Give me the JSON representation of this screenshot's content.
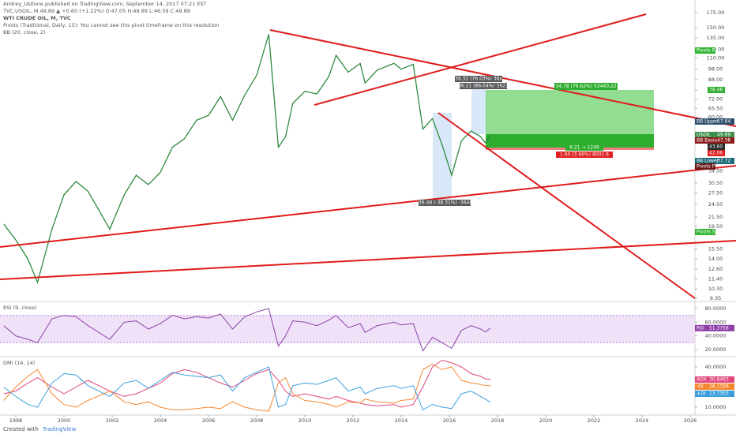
{
  "header": {
    "published": "Andrey_Ustlone published on TradingView.com, September 14, 2017 07:21 EST",
    "quote": "TVC:USOIL, M 49.89 ▲ +0.60 (+1.22%) O:47.05 H:49.89 L:46.59 C:49.89",
    "instrument": "WTI CRUDE OIL, M, TVC",
    "pivots": "Pivots (Traditional, Daily, 15): You cannot see this pivot timeframe on this resolution",
    "bb": "BB (20, close, 2)"
  },
  "price": {
    "name": "USOIL",
    "x": [
      1997.5,
      1998.0,
      1998.5,
      1998.9,
      1999.5,
      2000.0,
      2000.5,
      2001.0,
      2001.9,
      2002.5,
      2003.0,
      2003.5,
      2004.0,
      2004.5,
      2005.0,
      2005.5,
      2006.0,
      2006.5,
      2007.0,
      2007.5,
      2008.0,
      2008.5,
      2008.9,
      2009.2,
      2009.5,
      2010.0,
      2010.5,
      2011.0,
      2011.3,
      2011.8,
      2012.3,
      2012.5,
      2013.0,
      2013.7,
      2014.0,
      2014.5,
      2014.9,
      2015.3,
      2015.7,
      2016.1,
      2016.5,
      2016.9,
      2017.3,
      2017.5,
      2017.7
    ],
    "close": [
      20,
      17,
      14,
      11,
      19,
      27,
      31,
      28,
      19,
      27,
      33,
      30,
      34,
      44,
      48,
      58,
      61,
      74,
      58,
      75,
      92,
      140,
      44,
      49,
      69,
      78,
      76,
      91,
      113,
      95,
      104,
      85,
      97,
      104,
      98,
      103,
      53,
      59,
      45,
      33,
      47,
      52,
      49,
      46,
      49.89
    ]
  },
  "price_axis": [
    {
      "value": 175,
      "label": "175.00"
    },
    {
      "value": 150,
      "label": "150.00"
    },
    {
      "value": 135,
      "label": "135.00"
    },
    {
      "value": 120,
      "label": "120.00"
    },
    {
      "value": 110,
      "label": "110.00"
    },
    {
      "value": 98,
      "label": "98.00"
    },
    {
      "value": 88,
      "label": "88.00"
    },
    {
      "value": 79,
      "label": "79.00"
    },
    {
      "value": 72,
      "label": "72.00"
    },
    {
      "value": 65.5,
      "label": "65.50"
    },
    {
      "value": 60,
      "label": "60.00"
    },
    {
      "value": 34.5,
      "label": "34.50"
    },
    {
      "value": 30.5,
      "label": "30.50"
    },
    {
      "value": 27.5,
      "label": "27.50"
    },
    {
      "value": 24.5,
      "label": "24.50"
    },
    {
      "value": 21.5,
      "label": "21.50"
    },
    {
      "value": 19.5,
      "label": "19.50"
    },
    {
      "value": 15.5,
      "label": "15.50"
    },
    {
      "value": 14,
      "label": "14.00"
    },
    {
      "value": 12.6,
      "label": "12.60"
    },
    {
      "value": 11.4,
      "label": "11.40"
    },
    {
      "value": 10.3,
      "label": "10.30"
    },
    {
      "value": 9.35,
      "label": "9.35"
    }
  ],
  "price_badges": {
    "pivots_r1": "Pivots R1",
    "target": "78.46",
    "bb_upper": "BB Upper",
    "bb_upper_value": "57.64",
    "bb_basis": "BB Basis",
    "bb_basis_value": "47.38",
    "entry": "43.60",
    "stop": "42.06",
    "bb_lower": "BB Lower",
    "bb_lower_value": "37.72",
    "pivots_p": "Pivots P",
    "pivots_s1": "Pivots S1"
  },
  "annotations": {
    "position_target": "34.78 (79.62%) 53440.22",
    "position_mid": "6.21 → 1249",
    "position_stop": "1.60 (3.66%) 8001.6",
    "measure_1": "36.32 (76.03%) 36x",
    "measure_2": "36.21 (86.04%) 3621",
    "measure_3": "-36.48 (-38.31%) -3648"
  },
  "rsi": {
    "title": "RSI (9, close)",
    "name": "RSI",
    "color": "#8e3fa8",
    "values": [
      55,
      40,
      35,
      30,
      65,
      70,
      68,
      55,
      35,
      60,
      62,
      50,
      58,
      70,
      65,
      68,
      66,
      72,
      50,
      68,
      75,
      80,
      25,
      40,
      62,
      60,
      55,
      63,
      70,
      52,
      58,
      45,
      55,
      60,
      56,
      58,
      18,
      38,
      30,
      22,
      48,
      55,
      50,
      46,
      51.3758
    ],
    "axis": [
      {
        "value": 80,
        "label": "80.0000"
      },
      {
        "value": 60,
        "label": "60.0000"
      },
      {
        "value": 40,
        "label": "40.0000"
      },
      {
        "value": 20,
        "label": "20.0000"
      }
    ]
  },
  "dmi": {
    "title": "DMI (14, 14)",
    "series": [
      {
        "name": "ADX",
        "color": "#e0457b",
        "values": [
          20,
          22,
          28,
          32,
          25,
          20,
          25,
          30,
          22,
          18,
          20,
          24,
          28,
          35,
          38,
          36,
          32,
          28,
          25,
          30,
          35,
          38,
          30,
          22,
          18,
          20,
          18,
          16,
          18,
          15,
          13,
          12,
          11,
          12,
          10,
          12,
          25,
          40,
          45,
          43,
          40,
          35,
          33,
          31,
          30.8463
        ]
      },
      {
        "name": "-DI",
        "color": "#f5872f",
        "values": [
          15,
          25,
          33,
          38,
          20,
          12,
          10,
          15,
          22,
          14,
          12,
          14,
          10,
          8,
          8,
          9,
          10,
          9,
          14,
          10,
          8,
          7,
          28,
          32,
          20,
          15,
          14,
          12,
          10,
          14,
          13,
          16,
          14,
          13,
          15,
          16,
          38,
          42,
          38,
          40,
          30,
          28,
          27,
          26,
          26.1326
        ]
      },
      {
        "name": "+DI",
        "color": "#3a9ede",
        "values": [
          25,
          18,
          12,
          10,
          28,
          35,
          34,
          26,
          18,
          28,
          30,
          24,
          30,
          36,
          34,
          33,
          32,
          34,
          22,
          32,
          36,
          40,
          10,
          12,
          26,
          28,
          27,
          30,
          32,
          22,
          25,
          20,
          24,
          26,
          24,
          26,
          8,
          12,
          10,
          9,
          20,
          22,
          18,
          16,
          13.7303
        ]
      }
    ],
    "axis": [
      {
        "value": 40,
        "label": "40.0000"
      },
      {
        "value": 30,
        "label": "30.0000"
      },
      {
        "value": 20,
        "label": "20.0000"
      },
      {
        "value": 10,
        "label": "10.0000"
      }
    ]
  },
  "time_axis": [
    1998,
    2000,
    2002,
    2004,
    2006,
    2008,
    2010,
    2012,
    2014,
    2016,
    2018,
    2020,
    2022,
    2024,
    2026
  ],
  "footer": {
    "created": "Created with",
    "brand": "TradingView"
  }
}
